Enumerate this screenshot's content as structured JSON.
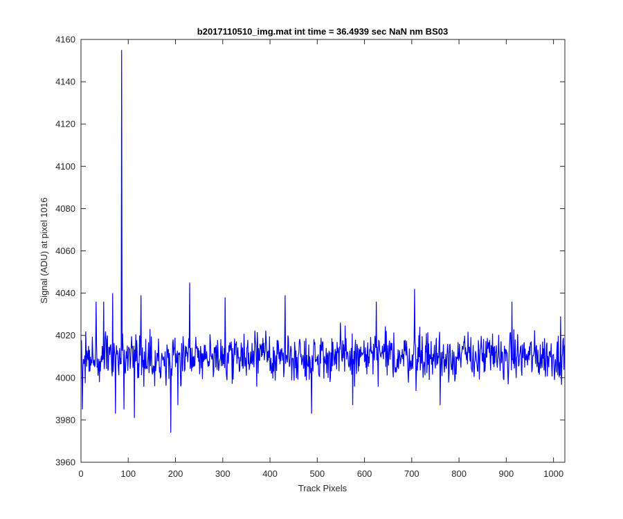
{
  "chart_data": {
    "type": "line",
    "title": "b2017110510_img.mat int time = 36.4939 sec  NaN nm BS03",
    "xlabel": "Track Pixels",
    "ylabel": "Signal (ADU) at pixel 1016",
    "xlim": [
      0,
      1024
    ],
    "ylim": [
      3960,
      4160
    ],
    "xticks": [
      0,
      100,
      200,
      300,
      400,
      500,
      600,
      700,
      800,
      900,
      1000
    ],
    "yticks": [
      3960,
      3980,
      4000,
      4020,
      4040,
      4060,
      4080,
      4100,
      4120,
      4140,
      4160
    ],
    "grid": false,
    "legend": "none",
    "series": [
      {
        "color": "#0000ff",
        "baseline": 4010,
        "noise_amplitude": 9,
        "x_range": [
          1,
          1024
        ],
        "notable_points": [
          {
            "x": 3,
            "y": 3985
          },
          {
            "x": 32,
            "y": 4036
          },
          {
            "x": 48,
            "y": 4036
          },
          {
            "x": 67,
            "y": 4040
          },
          {
            "x": 73,
            "y": 3983
          },
          {
            "x": 86,
            "y": 4155
          },
          {
            "x": 91,
            "y": 3985
          },
          {
            "x": 113,
            "y": 3981
          },
          {
            "x": 127,
            "y": 4039
          },
          {
            "x": 190,
            "y": 3974
          },
          {
            "x": 205,
            "y": 3987
          },
          {
            "x": 230,
            "y": 4045
          },
          {
            "x": 305,
            "y": 4038
          },
          {
            "x": 432,
            "y": 4039
          },
          {
            "x": 488,
            "y": 3983
          },
          {
            "x": 575,
            "y": 3987
          },
          {
            "x": 625,
            "y": 4036
          },
          {
            "x": 706,
            "y": 4042
          },
          {
            "x": 760,
            "y": 3987
          },
          {
            "x": 912,
            "y": 4036
          },
          {
            "x": 1015,
            "y": 4029
          }
        ]
      }
    ]
  }
}
